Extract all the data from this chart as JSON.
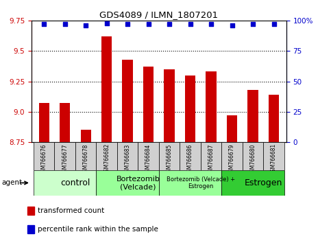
{
  "title": "GDS4089 / ILMN_1807201",
  "samples": [
    "GSM766676",
    "GSM766677",
    "GSM766678",
    "GSM766682",
    "GSM766683",
    "GSM766684",
    "GSM766685",
    "GSM766686",
    "GSM766687",
    "GSM766679",
    "GSM766680",
    "GSM766681"
  ],
  "bar_values": [
    9.07,
    9.07,
    8.85,
    9.62,
    9.43,
    9.37,
    9.35,
    9.3,
    9.33,
    8.97,
    9.18,
    9.14
  ],
  "dot_values": [
    97,
    97,
    96,
    98,
    97,
    97,
    97,
    97,
    97,
    96,
    97,
    97
  ],
  "bar_color": "#cc0000",
  "dot_color": "#0000cc",
  "ylim_left": [
    8.75,
    9.75
  ],
  "ylim_right": [
    0,
    100
  ],
  "yticks_left": [
    8.75,
    9.0,
    9.25,
    9.5,
    9.75
  ],
  "yticks_right": [
    0,
    25,
    50,
    75,
    100
  ],
  "ytick_labels_right": [
    "0",
    "25",
    "50",
    "75",
    "100%"
  ],
  "grid_values": [
    9.0,
    9.25,
    9.5
  ],
  "groups": [
    {
      "label": "control",
      "start": 0,
      "end": 3,
      "color": "#ccffcc",
      "fontsize": 9
    },
    {
      "label": "Bortezomib\n(Velcade)",
      "start": 3,
      "end": 6,
      "color": "#99ff99",
      "fontsize": 8
    },
    {
      "label": "Bortezomib (Velcade) +\nEstrogen",
      "start": 6,
      "end": 9,
      "color": "#99ff99",
      "fontsize": 6
    },
    {
      "label": "Estrogen",
      "start": 9,
      "end": 12,
      "color": "#33cc33",
      "fontsize": 9
    }
  ],
  "legend_items": [
    {
      "color": "#cc0000",
      "label": "transformed count"
    },
    {
      "color": "#0000cc",
      "label": "percentile rank within the sample"
    }
  ],
  "agent_label": "agent",
  "left_axis_color": "#cc0000",
  "right_axis_color": "#0000cc",
  "sample_box_color": "#d0d0d0",
  "bar_width": 0.5
}
